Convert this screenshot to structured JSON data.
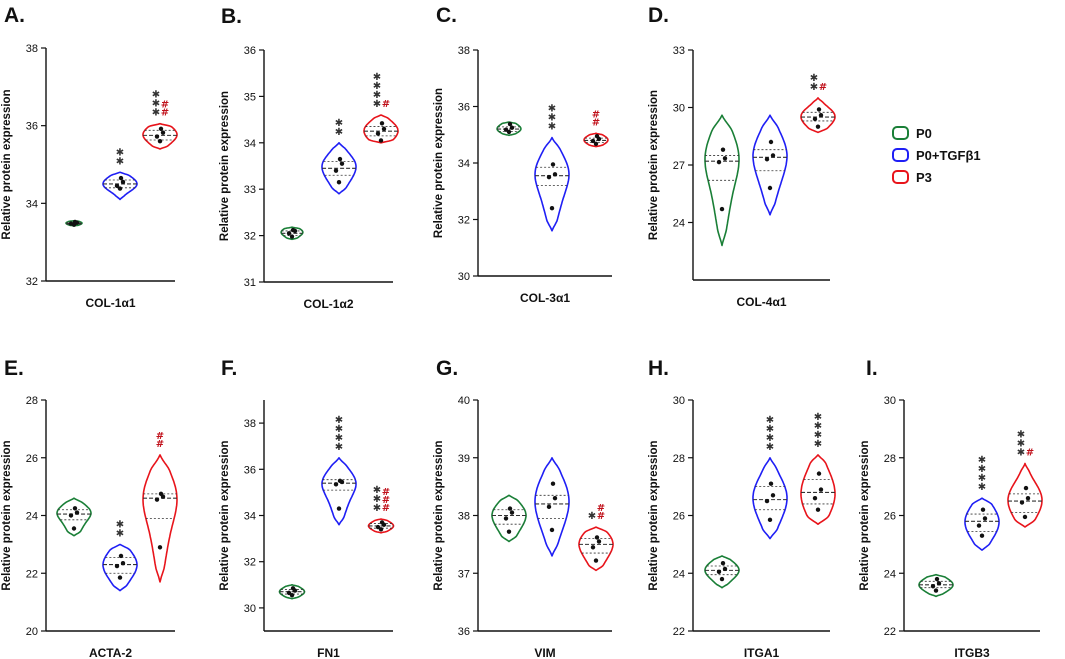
{
  "legend": [
    {
      "label": "P0",
      "color": "#1a7f37"
    },
    {
      "label": "P0+TGFβ1",
      "color": "#1f1ff5"
    },
    {
      "label": "P3",
      "color": "#e8141b"
    }
  ],
  "colors": {
    "axis": "#111111",
    "median_line": "#333333",
    "point": "#111111",
    "sig_gray": "#333333",
    "sig_red": "#c0101a"
  },
  "chart_data": [
    {
      "type": "violin",
      "panel": "A.",
      "title": "COL-1α1",
      "ylabel": "Relative protein expression",
      "ylim": [
        32,
        38
      ],
      "yticks": [
        32,
        34,
        36,
        38
      ],
      "series": [
        {
          "name": "P0",
          "median": 33.48,
          "q1": 33.46,
          "q3": 33.51,
          "min": 33.42,
          "max": 33.55,
          "points": [
            33.45,
            33.48,
            33.5,
            33.52
          ],
          "sig": ""
        },
        {
          "name": "P0+TGFβ1",
          "median": 34.5,
          "q1": 34.4,
          "q3": 34.6,
          "min": 34.1,
          "max": 34.8,
          "points": [
            34.38,
            34.45,
            34.55,
            34.65
          ],
          "sig": "✱✱"
        },
        {
          "name": "P3",
          "median": 35.75,
          "q1": 35.63,
          "q3": 35.88,
          "min": 35.4,
          "max": 36.05,
          "points": [
            35.6,
            35.72,
            35.82,
            35.92
          ],
          "sig": "✱✱✱",
          "sig2": "##"
        }
      ]
    },
    {
      "type": "violin",
      "panel": "B.",
      "title": "COL-1α2",
      "ylabel": "Relative protein expression",
      "ylim": [
        31,
        36
      ],
      "yticks": [
        31,
        32,
        33,
        34,
        35,
        36
      ],
      "series": [
        {
          "name": "P0",
          "median": 32.05,
          "q1": 32.0,
          "q3": 32.1,
          "min": 31.92,
          "max": 32.18,
          "points": [
            31.98,
            32.05,
            32.1,
            32.12
          ],
          "sig": ""
        },
        {
          "name": "P0+TGFβ1",
          "median": 33.45,
          "q1": 33.3,
          "q3": 33.6,
          "min": 32.9,
          "max": 34.0,
          "points": [
            33.15,
            33.4,
            33.55,
            33.65
          ],
          "sig": "✱✱"
        },
        {
          "name": "P3",
          "median": 34.25,
          "q1": 34.15,
          "q3": 34.35,
          "min": 34.0,
          "max": 34.6,
          "points": [
            34.05,
            34.2,
            34.3,
            34.42
          ],
          "sig": "✱✱✱✱",
          "sig2": "#"
        }
      ]
    },
    {
      "type": "violin",
      "panel": "C.",
      "title": "COL-3α1",
      "ylabel": "Relative protein expression",
      "ylim": [
        30,
        38
      ],
      "yticks": [
        30,
        32,
        34,
        36,
        38
      ],
      "series": [
        {
          "name": "P0",
          "median": 35.2,
          "q1": 35.12,
          "q3": 35.28,
          "min": 34.98,
          "max": 35.45,
          "points": [
            35.1,
            35.18,
            35.25,
            35.38
          ],
          "sig": ""
        },
        {
          "name": "P0+TGFβ1",
          "median": 33.55,
          "q1": 33.2,
          "q3": 33.85,
          "min": 31.6,
          "max": 34.9,
          "points": [
            32.4,
            33.5,
            33.6,
            33.95
          ],
          "sig": "✱✱✱"
        },
        {
          "name": "P3",
          "median": 34.8,
          "q1": 34.72,
          "q3": 34.88,
          "min": 34.58,
          "max": 35.05,
          "points": [
            34.68,
            34.78,
            34.85,
            34.95
          ],
          "sig": "",
          "sig2": "##"
        }
      ]
    },
    {
      "type": "violin",
      "panel": "D.",
      "title": "COL-4α1",
      "ylabel": "Relative protein expression",
      "ylim": [
        21,
        33
      ],
      "yticks": [
        24,
        27,
        30,
        33
      ],
      "series": [
        {
          "name": "P0",
          "median": 27.2,
          "q1": 26.2,
          "q3": 27.5,
          "min": 22.8,
          "max": 29.6,
          "points": [
            24.7,
            27.15,
            27.35,
            27.8
          ],
          "sig": ""
        },
        {
          "name": "P0+TGFβ1",
          "median": 27.4,
          "q1": 26.7,
          "q3": 27.8,
          "min": 24.4,
          "max": 29.6,
          "points": [
            25.8,
            27.3,
            27.5,
            28.2
          ],
          "sig": ""
        },
        {
          "name": "P3",
          "median": 29.5,
          "q1": 29.3,
          "q3": 29.75,
          "min": 28.7,
          "max": 30.5,
          "points": [
            29.0,
            29.4,
            29.6,
            29.9
          ],
          "sig": "✱✱",
          "sig2": "#"
        }
      ]
    },
    {
      "type": "violin",
      "panel": "E.",
      "title": "ACTA-2",
      "ylabel": "Relative protein expression",
      "ylim": [
        20,
        28
      ],
      "yticks": [
        20,
        22,
        24,
        26,
        28
      ],
      "series": [
        {
          "name": "P0",
          "median": 24.05,
          "q1": 23.85,
          "q3": 24.2,
          "min": 23.3,
          "max": 24.6,
          "points": [
            23.55,
            24.0,
            24.1,
            24.25
          ],
          "sig": ""
        },
        {
          "name": "P0+TGFβ1",
          "median": 22.3,
          "q1": 22.0,
          "q3": 22.55,
          "min": 21.4,
          "max": 23.0,
          "points": [
            21.85,
            22.25,
            22.35,
            22.6
          ],
          "sig": "✱✱"
        },
        {
          "name": "P3",
          "median": 24.6,
          "q1": 23.9,
          "q3": 24.75,
          "min": 21.7,
          "max": 26.1,
          "points": [
            22.9,
            24.55,
            24.65,
            24.75
          ],
          "sig": "",
          "sig2": "##"
        }
      ]
    },
    {
      "type": "violin",
      "panel": "F.",
      "title": "FN1",
      "ylabel": "Relative protein expression",
      "ylim": [
        29,
        39
      ],
      "yticks": [
        30,
        32,
        34,
        36,
        38
      ],
      "series": [
        {
          "name": "P0",
          "median": 30.7,
          "q1": 30.6,
          "q3": 30.8,
          "min": 30.4,
          "max": 31.0,
          "points": [
            30.55,
            30.65,
            30.75,
            30.85
          ],
          "sig": ""
        },
        {
          "name": "P0+TGFβ1",
          "median": 35.4,
          "q1": 35.1,
          "q3": 35.55,
          "min": 33.6,
          "max": 36.5,
          "points": [
            34.3,
            35.35,
            35.45,
            35.5
          ],
          "sig": "✱✱✱✱"
        },
        {
          "name": "P3",
          "median": 33.55,
          "q1": 33.45,
          "q3": 33.65,
          "min": 33.25,
          "max": 33.85,
          "points": [
            33.4,
            33.5,
            33.6,
            33.7
          ],
          "sig": "✱✱✱",
          "sig2": "###"
        }
      ]
    },
    {
      "type": "violin",
      "panel": "G.",
      "title": "VIM",
      "ylabel": "Relative protein expression",
      "ylim": [
        36,
        40
      ],
      "yticks": [
        36,
        37,
        38,
        39,
        40
      ],
      "series": [
        {
          "name": "P0",
          "median": 38.0,
          "q1": 37.85,
          "q3": 38.1,
          "min": 37.55,
          "max": 38.35,
          "points": [
            37.72,
            37.95,
            38.05,
            38.12
          ],
          "sig": ""
        },
        {
          "name": "P0+TGFβ1",
          "median": 38.2,
          "q1": 37.95,
          "q3": 38.35,
          "min": 37.3,
          "max": 39.0,
          "points": [
            37.75,
            38.15,
            38.3,
            38.55
          ],
          "sig": ""
        },
        {
          "name": "P3",
          "median": 37.5,
          "q1": 37.35,
          "q3": 37.6,
          "min": 37.05,
          "max": 37.8,
          "points": [
            37.22,
            37.45,
            37.55,
            37.62
          ],
          "sig": "✱",
          "sig2": "##"
        }
      ]
    },
    {
      "type": "violin",
      "panel": "H.",
      "title": "ITGA1",
      "ylabel": "Relative protein expression",
      "ylim": [
        22,
        30
      ],
      "yticks": [
        22,
        24,
        26,
        28,
        30
      ],
      "series": [
        {
          "name": "P0",
          "median": 24.1,
          "q1": 23.95,
          "q3": 24.25,
          "min": 23.5,
          "max": 24.6,
          "points": [
            23.8,
            24.05,
            24.15,
            24.35
          ],
          "sig": ""
        },
        {
          "name": "P0+TGFβ1",
          "median": 26.55,
          "q1": 26.2,
          "q3": 27.0,
          "min": 25.2,
          "max": 28.0,
          "points": [
            25.85,
            26.5,
            26.7,
            27.1
          ],
          "sig": "✱✱✱✱"
        },
        {
          "name": "P3",
          "median": 26.8,
          "q1": 26.4,
          "q3": 27.25,
          "min": 25.7,
          "max": 28.1,
          "points": [
            26.2,
            26.6,
            26.9,
            27.45
          ],
          "sig": "✱✱✱✱"
        }
      ]
    },
    {
      "type": "violin",
      "panel": "I.",
      "title": "ITGB3",
      "ylabel": "Relative protein expression",
      "ylim": [
        22,
        30
      ],
      "yticks": [
        22,
        24,
        26,
        28,
        30
      ],
      "series": [
        {
          "name": "P0",
          "median": 23.6,
          "q1": 23.5,
          "q3": 23.72,
          "min": 23.2,
          "max": 23.95,
          "points": [
            23.4,
            23.55,
            23.65,
            23.8
          ],
          "sig": ""
        },
        {
          "name": "P0+TGFβ1",
          "median": 25.8,
          "q1": 25.45,
          "q3": 26.05,
          "min": 24.8,
          "max": 26.6,
          "points": [
            25.3,
            25.65,
            25.9,
            26.2
          ],
          "sig": "✱✱✱✱"
        },
        {
          "name": "P3",
          "median": 26.5,
          "q1": 26.1,
          "q3": 26.75,
          "min": 25.6,
          "max": 27.8,
          "points": [
            25.95,
            26.45,
            26.6,
            26.95
          ],
          "sig": "✱✱✱",
          "sig2": "#"
        }
      ]
    }
  ]
}
